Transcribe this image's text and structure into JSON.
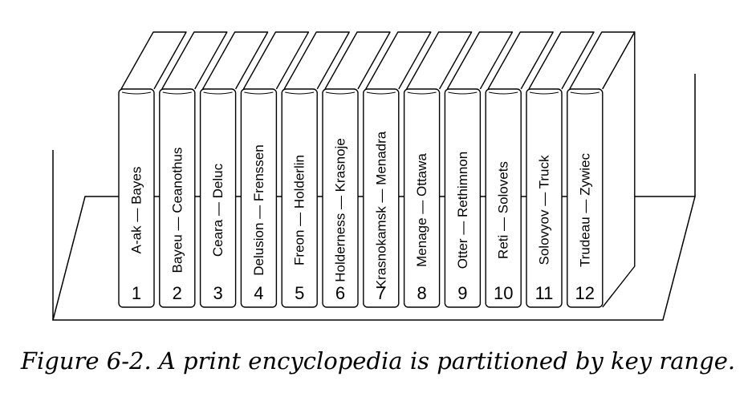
{
  "figure": {
    "caption": "Figure 6-2. A print encyclopedia is partitioned by key range."
  },
  "volumes": [
    {
      "number": "1",
      "range": "A-ak — Bayes"
    },
    {
      "number": "2",
      "range": "Bayeu — Ceanothus"
    },
    {
      "number": "3",
      "range": "Ceara — Deluc"
    },
    {
      "number": "4",
      "range": "Delusion — Frenssen"
    },
    {
      "number": "5",
      "range": "Freon — Holderlin"
    },
    {
      "number": "6",
      "range": "Holderness — Krasnoje"
    },
    {
      "number": "7",
      "range": "Krasnokamsk — Menadra"
    },
    {
      "number": "8",
      "range": "Menage — Ottawa"
    },
    {
      "number": "9",
      "range": "Otter — Rethimnon"
    },
    {
      "number": "10",
      "range": "Reti — Solovets"
    },
    {
      "number": "11",
      "range": "Solovyov — Truck"
    },
    {
      "number": "12",
      "range": "Trudeau — Zywiec"
    }
  ]
}
